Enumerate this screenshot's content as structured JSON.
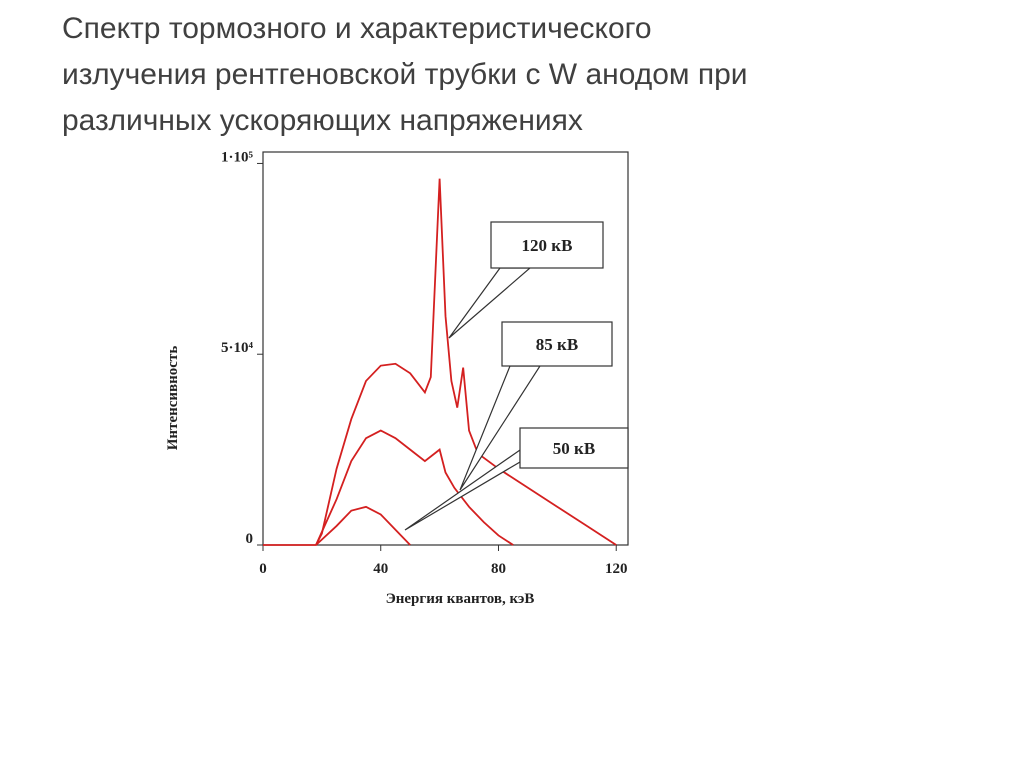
{
  "chart_data": {
    "type": "line",
    "title": [
      "Спектр тормозного и характеристического",
      "излучения рентгеновской трубки  с W анодом при",
      "различных ускоряющих напряжениях"
    ],
    "x_label": "Энергия квантов, кэВ",
    "y_label": "Интенсивность",
    "xlim": [
      0,
      124
    ],
    "xticks": [
      0,
      40,
      80,
      120
    ],
    "ylim": [
      0,
      103000
    ],
    "yticks": [
      {
        "value": 0,
        "label": "0"
      },
      {
        "value": 50000,
        "label": "5·10⁴"
      },
      {
        "value": 100000,
        "label": "1·10⁵"
      }
    ],
    "series": [
      {
        "name": "120 кВ",
        "color": "#d42020",
        "x": [
          0,
          18,
          20,
          25,
          30,
          35,
          40,
          45,
          50,
          55,
          57,
          60,
          62,
          64,
          66,
          68,
          70,
          73,
          80,
          90,
          100,
          110,
          120
        ],
        "values": [
          0,
          0,
          3000,
          20000,
          33000,
          43000,
          47000,
          47500,
          45000,
          40000,
          44000,
          96000,
          60000,
          43000,
          36000,
          46500,
          30000,
          24000,
          20000,
          15000,
          10000,
          5000,
          0
        ]
      },
      {
        "name": "85 кВ",
        "color": "#d42020",
        "x": [
          18,
          25,
          30,
          35,
          40,
          45,
          50,
          55,
          60,
          62,
          65,
          70,
          75,
          80,
          85
        ],
        "values": [
          0,
          12000,
          22000,
          28000,
          30000,
          28000,
          25000,
          22000,
          25000,
          19000,
          15000,
          10000,
          6000,
          2500,
          0
        ]
      },
      {
        "name": "50 кВ",
        "color": "#d42020",
        "x": [
          18,
          25,
          30,
          35,
          40,
          45,
          50
        ],
        "values": [
          0,
          5000,
          9000,
          10000,
          8000,
          4000,
          0
        ]
      }
    ]
  }
}
